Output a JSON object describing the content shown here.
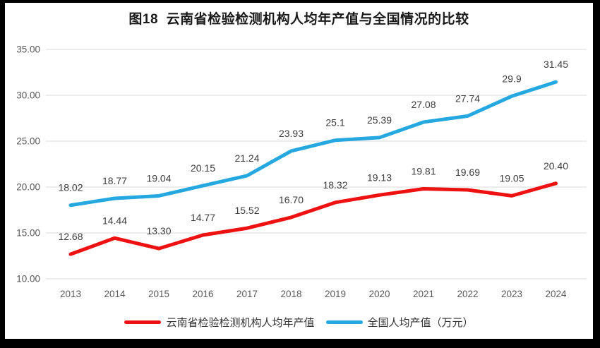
{
  "chart_data": {
    "type": "line",
    "title": "图18  云南省检验检测机构人均年产值与全国情况的比较",
    "categories": [
      "2013",
      "2014",
      "2015",
      "2016",
      "2017",
      "2018",
      "2019",
      "2020",
      "2021",
      "2022",
      "2023",
      "2024"
    ],
    "series": [
      {
        "id": "yunnan",
        "name": "云南省检验检测机构人均年产值",
        "color": "#ee1111",
        "values": [
          12.68,
          14.44,
          13.3,
          14.77,
          15.52,
          16.7,
          18.32,
          19.13,
          19.81,
          19.69,
          19.05,
          20.4
        ],
        "labels": [
          "12.68",
          "14.44",
          "13.30",
          "14.77",
          "15.52",
          "16.70",
          "18.32",
          "19.13",
          "19.81",
          "19.69",
          "19.05",
          "20.40"
        ]
      },
      {
        "id": "national",
        "name": "全国人均产值（万元）",
        "color": "#25a8e0",
        "values": [
          18.02,
          18.77,
          19.04,
          20.15,
          21.24,
          23.93,
          25.1,
          25.39,
          27.08,
          27.74,
          29.9,
          31.45
        ],
        "labels": [
          "18.02",
          "18.77",
          "19.04",
          "20.15",
          "21.24",
          "23.93",
          "25.1",
          "25.39",
          "27.08",
          "27.74",
          "29.9",
          "31.45"
        ]
      }
    ],
    "y_axis": {
      "min": 10,
      "max": 35,
      "step": 5,
      "ticks": [
        "35.00",
        "30.00",
        "25.00",
        "20.00",
        "15.00",
        "10.00"
      ]
    },
    "grid": true,
    "gridline_color": "#d9d9d9",
    "legend_position": "bottom",
    "data_labels": true
  }
}
